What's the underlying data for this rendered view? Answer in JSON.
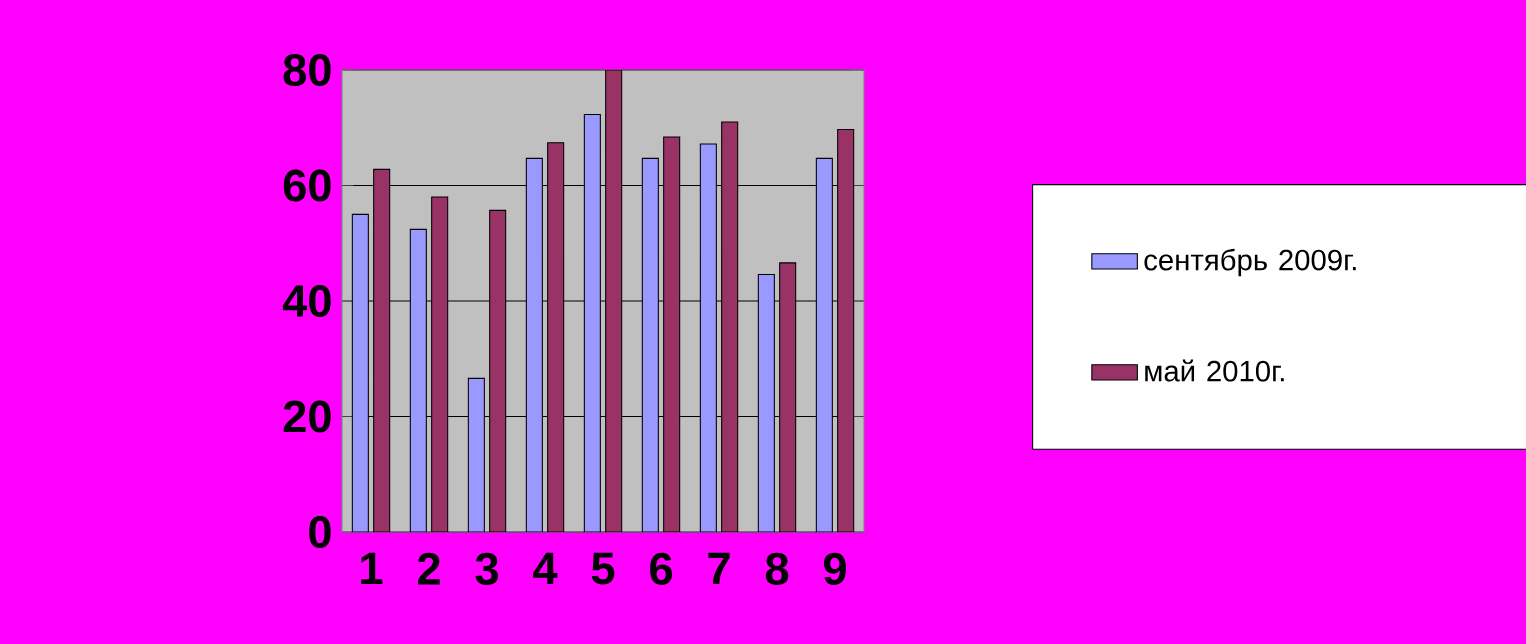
{
  "chart_data": {
    "type": "bar",
    "categories": [
      "1",
      "2",
      "3",
      "4",
      "5",
      "6",
      "7",
      "8",
      "9"
    ],
    "series": [
      {
        "name": "сентябрь 2009г.",
        "color": "#9999ff",
        "values": [
          55,
          52.4,
          26.6,
          64.7,
          72.3,
          64.7,
          67.2,
          44.6,
          64.7
        ]
      },
      {
        "name": "май 2010г.",
        "color": "#993366",
        "values": [
          62.8,
          58,
          55.7,
          67.4,
          80,
          68.4,
          71,
          46.6,
          69.7
        ]
      }
    ],
    "ylim": [
      0,
      80
    ],
    "yticks": [
      0,
      20,
      40,
      60,
      80
    ],
    "grid": "y",
    "legend": "right"
  }
}
